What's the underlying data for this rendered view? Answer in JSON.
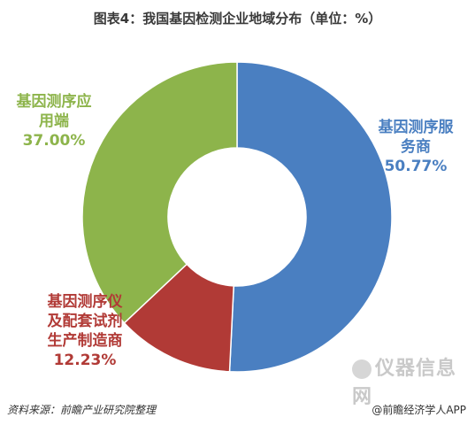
{
  "chart_data": {
    "type": "pie",
    "title": "图表4：我国基因检测企业地域分布（单位：%）",
    "series": [
      {
        "name_lines": [
          "基因测序服",
          "务商"
        ],
        "value_label": "50.77%",
        "value": 50.77,
        "color": "#4a7fc1"
      },
      {
        "name_lines": [
          "基因测序仪",
          "及配套试剂",
          "生产制造商"
        ],
        "value_label": "12.23%",
        "value": 12.23,
        "color": "#b13a36"
      },
      {
        "name_lines": [
          "基因测序应",
          "用端"
        ],
        "value_label": "37.00%",
        "value": 37.0,
        "color": "#8db44b"
      }
    ]
  },
  "footer": {
    "source": "资料来源：前瞻产业研究院整理",
    "credit": "@前瞻经济学人APP"
  },
  "watermark": {
    "text": "仪器信息网"
  }
}
